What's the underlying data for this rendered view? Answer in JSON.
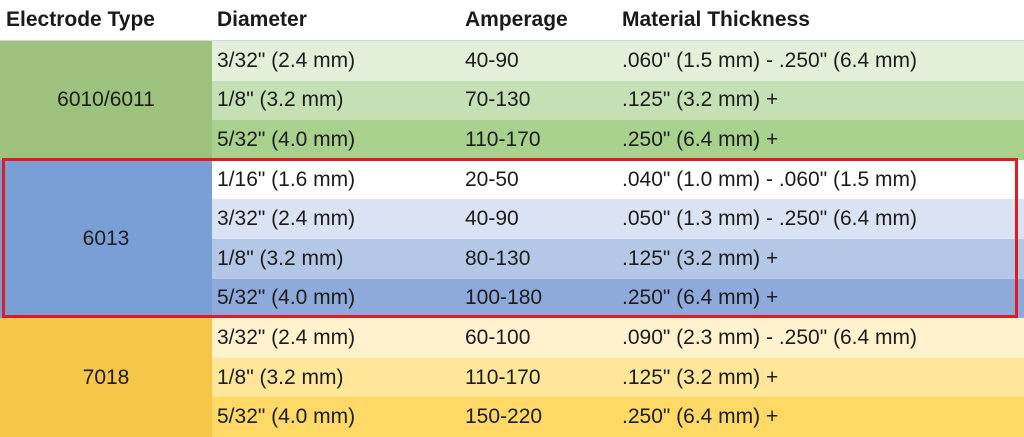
{
  "headers": {
    "electrode_type": "Electrode Type",
    "diameter": "Diameter",
    "amperage": "Amperage",
    "material_thickness": "Material Thickness"
  },
  "groups": [
    {
      "label": "6010/6011",
      "label_color": "#9cc27e",
      "rows": [
        {
          "diameter": "3/32\" (2.4 mm)",
          "amperage": "40-90",
          "thickness": ".060\" (1.5 mm) - .250\" (6.4 mm)",
          "color": "#e2efd9"
        },
        {
          "diameter": "1/8\" (3.2 mm)",
          "amperage": "70-130",
          "thickness": ".125\" (3.2 mm) +",
          "color": "#c5e0b4"
        },
        {
          "diameter": "5/32\" (4.0 mm)",
          "amperage": "110-170",
          "thickness": ".250\" (6.4 mm) +",
          "color": "#a9d18e"
        }
      ]
    },
    {
      "label": "6013",
      "label_color": "#7a9fd6",
      "rows": [
        {
          "diameter": "1/16\" (1.6 mm)",
          "amperage": "20-50",
          "thickness": ".040\" (1.0 mm) - .060\" (1.5 mm)",
          "color": "#ffffff"
        },
        {
          "diameter": "3/32\" (2.4 mm)",
          "amperage": "40-90",
          "thickness": ".050\" (1.3 mm) - .250\" (6.4 mm)",
          "color": "#dae3f3"
        },
        {
          "diameter": "1/8\" (3.2 mm)",
          "amperage": "80-130",
          "thickness": ".125\" (3.2 mm) +",
          "color": "#b4c7e7"
        },
        {
          "diameter": "5/32\" (4.0 mm)",
          "amperage": "100-180",
          "thickness": ".250\" (6.4 mm) +",
          "color": "#8eaadb"
        }
      ]
    },
    {
      "label": "7018",
      "label_color": "#f7c548",
      "rows": [
        {
          "diameter": "3/32\" (2.4 mm)",
          "amperage": "60-100",
          "thickness": ".090\" (2.3 mm) - .250\" (6.4 mm)",
          "color": "#fff2cc"
        },
        {
          "diameter": "1/8\" (3.2 mm)",
          "amperage": "110-170",
          "thickness": ".125\" (3.2 mm) +",
          "color": "#ffe699"
        },
        {
          "diameter": "5/32\" (4.0 mm)",
          "amperage": "150-220",
          "thickness": ".250\" (6.4 mm) +",
          "color": "#ffd966"
        }
      ]
    }
  ],
  "highlight": {
    "group": "6013",
    "color": "#e01b24"
  }
}
